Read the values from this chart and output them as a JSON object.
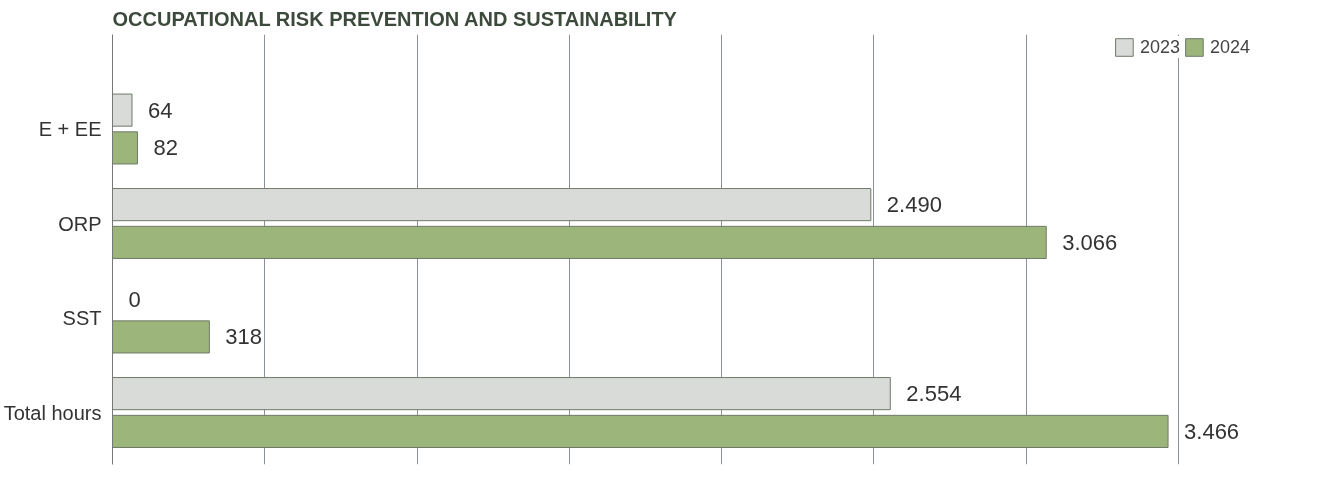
{
  "chart_data": {
    "type": "bar",
    "orientation": "horizontal",
    "title": "OCCUPATIONAL RISK PREVENTION AND SUSTAINABILITY",
    "categories": [
      "E + EE",
      "ORP",
      "SST",
      "Total hours"
    ],
    "series": [
      {
        "name": "2023",
        "color": "#d9dbd9",
        "values": [
          64,
          2490,
          0,
          2554
        ],
        "value_labels": [
          "64",
          "2.490",
          "0",
          "2.554"
        ]
      },
      {
        "name": "2024",
        "color": "#9bb57a",
        "values": [
          82,
          3066,
          318,
          3466
        ],
        "value_labels": [
          "82",
          "3.066",
          "318",
          "3.466"
        ]
      }
    ],
    "tick_labels": "y",
    "grid": "x",
    "legend": "top right"
  }
}
